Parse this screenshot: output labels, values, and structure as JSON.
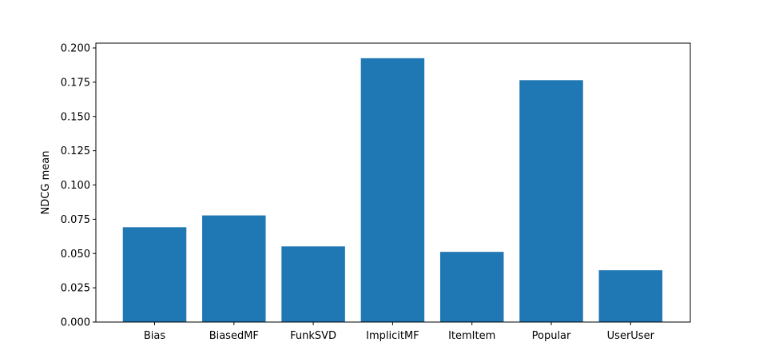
{
  "chart_data": {
    "type": "bar",
    "categories": [
      "Bias",
      "BiasedMF",
      "FunkSVD",
      "ImplicitMF",
      "ItemItem",
      "Popular",
      "UserUser"
    ],
    "values": [
      0.0692,
      0.0778,
      0.0552,
      0.1925,
      0.0512,
      0.1765,
      0.0378
    ],
    "title": "",
    "xlabel": "",
    "ylabel": "NDCG mean",
    "ylim": [
      0,
      0.2035
    ],
    "yticks": [
      "0.000",
      "0.025",
      "0.050",
      "0.075",
      "0.100",
      "0.125",
      "0.150",
      "0.175",
      "0.200"
    ],
    "bar_color": "#1f77b4",
    "grid": false,
    "legend": "none"
  }
}
